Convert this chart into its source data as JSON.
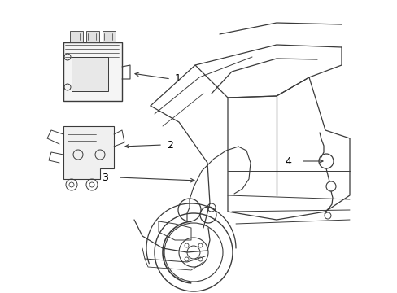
{
  "bg_color": "#ffffff",
  "line_color": "#3a3a3a",
  "label_color": "#000000",
  "fig_width": 4.89,
  "fig_height": 3.6,
  "dpi": 100
}
